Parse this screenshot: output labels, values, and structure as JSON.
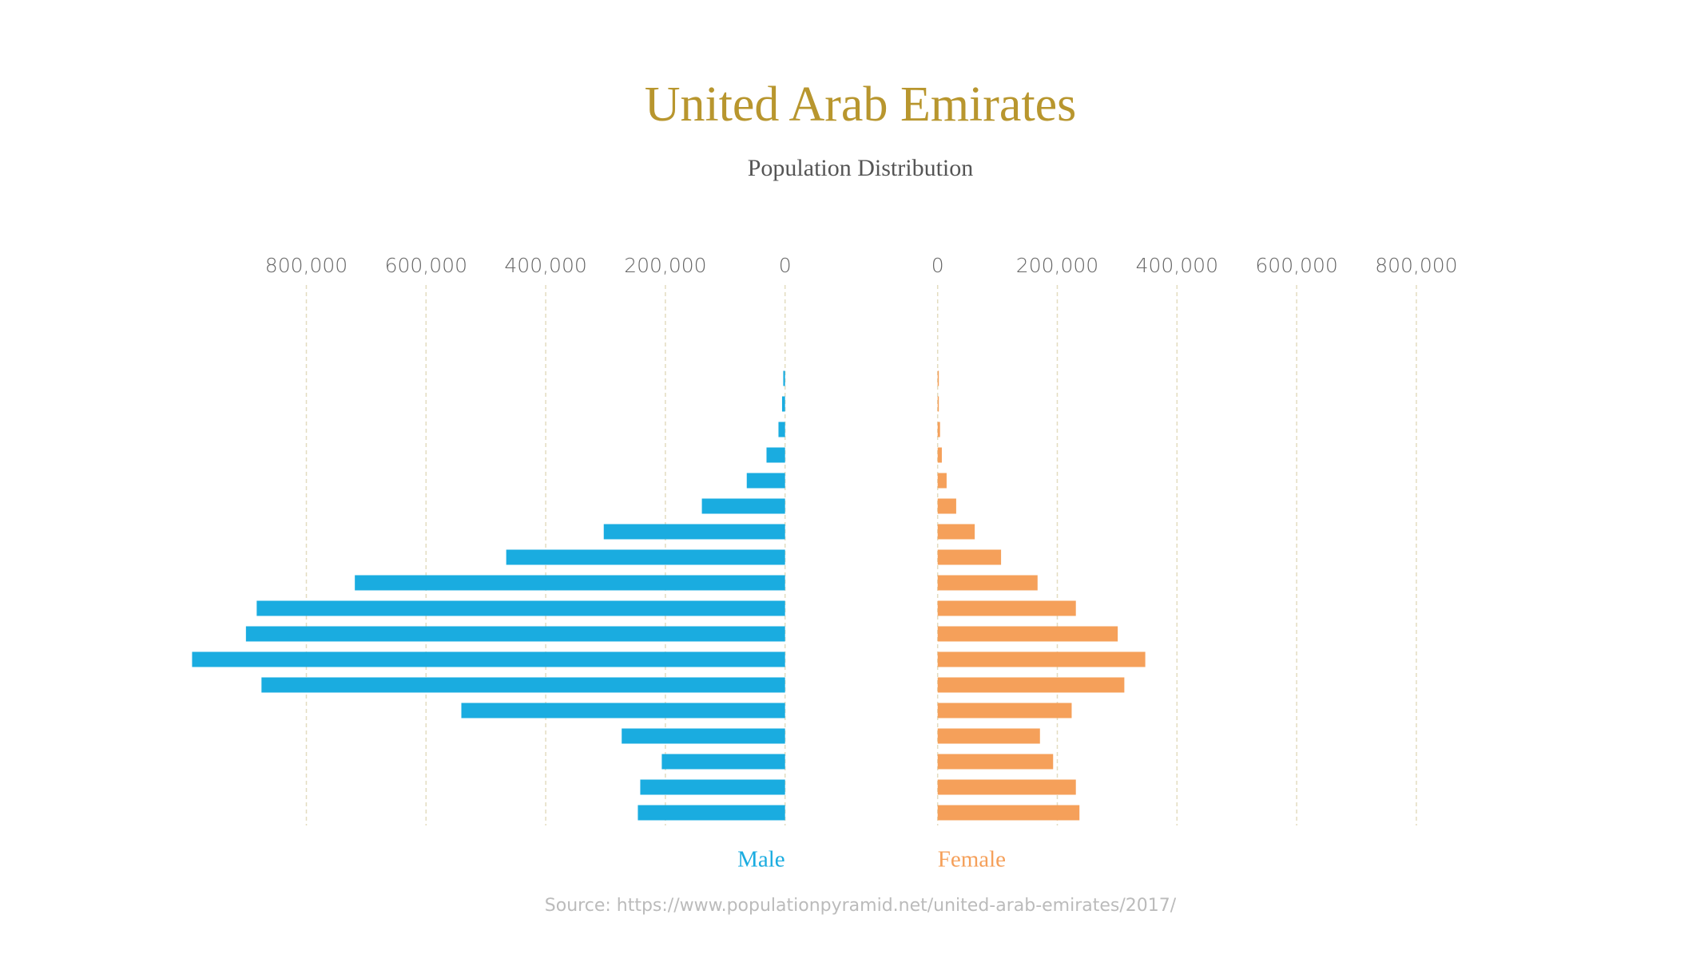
{
  "title": "United Arab Emirates",
  "subtitle": "Population Distribution",
  "source": "Source: https://www.populationpyramid.net/united-arab-emirates/2017/",
  "chart_data": [
    {
      "type": "bar",
      "orientation": "horizontal",
      "direction": "left",
      "grid": true,
      "xlim": [
        0,
        1000000
      ],
      "xticks": [
        {
          "value": 800000,
          "label": "800,000"
        },
        {
          "value": 600000,
          "label": "600,000"
        },
        {
          "value": 400000,
          "label": "400,000"
        },
        {
          "value": 200000,
          "label": "200,000"
        },
        0
      ],
      "series": [
        {
          "name": "Male",
          "color": "#1aace0",
          "values": [
            3000,
            5000,
            11000,
            31000,
            64000,
            139000,
            303000,
            466000,
            719000,
            883000,
            901000,
            991000,
            875000,
            541000,
            273000,
            206000,
            242000,
            246000
          ]
        }
      ]
    },
    {
      "type": "bar",
      "orientation": "horizontal",
      "direction": "right",
      "grid": true,
      "xlim": [
        0,
        1000000
      ],
      "xticks": [
        0,
        {
          "value": 200000,
          "label": "200,000"
        },
        {
          "value": 400000,
          "label": "400,000"
        },
        {
          "value": 600000,
          "label": "600,000"
        },
        {
          "value": 800000,
          "label": "800,000"
        }
      ],
      "series": [
        {
          "name": "Female",
          "color": "#f5a05a",
          "values": [
            2000,
            2000,
            4000,
            7000,
            15000,
            31000,
            62000,
            106000,
            167000,
            231000,
            301000,
            347000,
            312000,
            224000,
            171000,
            193000,
            231000,
            237000
          ]
        }
      ]
    }
  ]
}
